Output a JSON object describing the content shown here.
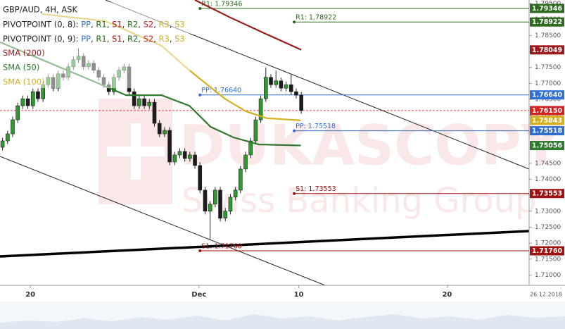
{
  "chart_data": {
    "type": "candlestick",
    "title": "GBP/AUD, 4H, ASK",
    "xlim": [
      -0.5,
      104
    ],
    "ylim": [
      1.7068,
      1.7961
    ],
    "xticks": [
      {
        "value": 5.5,
        "label": "20"
      },
      {
        "value": 38.8,
        "label": "Dec"
      },
      {
        "value": 58.5,
        "label": "10"
      },
      {
        "value": 87.8,
        "label": "20"
      }
    ],
    "end_date": "26.12.2018",
    "yticks": [
      {
        "value": 1.71,
        "label": "1.71000"
      },
      {
        "value": 1.715,
        "label": "1.71500"
      },
      {
        "value": 1.72,
        "label": "1.72000"
      },
      {
        "value": 1.725,
        "label": "1.72500"
      },
      {
        "value": 1.73,
        "label": "1.73000"
      },
      {
        "value": 1.735,
        "label": "1.73500"
      },
      {
        "value": 1.74,
        "label": "1.74000"
      },
      {
        "value": 1.745,
        "label": "1.74500"
      },
      {
        "value": 1.75,
        "label": "1.75000"
      },
      {
        "value": 1.755,
        "label": "1.75500"
      },
      {
        "value": 1.76,
        "label": "1.76000"
      },
      {
        "value": 1.765,
        "label": "1.76500"
      },
      {
        "value": 1.77,
        "label": "1.77000"
      },
      {
        "value": 1.775,
        "label": "1.77500"
      },
      {
        "value": 1.78,
        "label": "1.78000"
      },
      {
        "value": 1.785,
        "label": "1.78500"
      },
      {
        "value": 1.79,
        "label": "1.79000"
      },
      {
        "value": 1.795,
        "label": "1.79500"
      }
    ],
    "up_color": "#2e9a2e",
    "down_color": "#1c1c1c",
    "open": [
      1.75,
      1.752,
      1.7542,
      1.7586,
      1.763,
      1.7652,
      1.763,
      1.7674,
      1.7652,
      1.7696,
      1.7719,
      1.7685,
      1.773,
      1.7719,
      1.7752,
      1.7774,
      1.7785,
      1.7752,
      1.7763,
      1.7741,
      1.7719,
      1.7696,
      1.7674,
      1.7719,
      1.7741,
      1.7752,
      1.7674,
      1.763,
      1.7652,
      1.763,
      1.7641,
      1.7575,
      1.7542,
      1.7553,
      1.7454,
      1.7476,
      1.7487,
      1.7465,
      1.7476,
      1.7443,
      1.7366,
      1.73,
      1.7322,
      1.7366,
      1.7278,
      1.73,
      1.7344,
      1.7366,
      1.7432,
      1.7476,
      1.752,
      1.7586,
      1.7652,
      1.7719,
      1.7696,
      1.7708,
      1.7685,
      1.7696,
      1.7674,
      1.7663
    ],
    "high": [
      1.753,
      1.7552,
      1.7596,
      1.764,
      1.7662,
      1.7662,
      1.7684,
      1.7684,
      1.7706,
      1.7729,
      1.7729,
      1.774,
      1.774,
      1.7762,
      1.7784,
      1.781,
      1.7795,
      1.7773,
      1.7773,
      1.7751,
      1.7729,
      1.7706,
      1.7729,
      1.7751,
      1.7762,
      1.7762,
      1.7684,
      1.7662,
      1.7662,
      1.7651,
      1.7651,
      1.7585,
      1.7563,
      1.7563,
      1.7486,
      1.7497,
      1.7497,
      1.7486,
      1.7486,
      1.7453,
      1.7376,
      1.7332,
      1.7376,
      1.7376,
      1.731,
      1.7354,
      1.7376,
      1.7442,
      1.7486,
      1.753,
      1.7596,
      1.7662,
      1.775,
      1.7729,
      1.774,
      1.7718,
      1.7706,
      1.773,
      1.7684,
      1.7673
    ],
    "low": [
      1.749,
      1.751,
      1.7532,
      1.7576,
      1.762,
      1.762,
      1.762,
      1.7642,
      1.7642,
      1.7686,
      1.7675,
      1.7675,
      1.7709,
      1.7709,
      1.7742,
      1.7764,
      1.7742,
      1.7742,
      1.7731,
      1.7709,
      1.7686,
      1.7664,
      1.7664,
      1.7709,
      1.7731,
      1.7664,
      1.762,
      1.762,
      1.762,
      1.762,
      1.7565,
      1.7532,
      1.7532,
      1.7444,
      1.7444,
      1.7466,
      1.7455,
      1.7455,
      1.7433,
      1.7356,
      1.729,
      1.7211,
      1.7312,
      1.7268,
      1.7268,
      1.729,
      1.7334,
      1.7356,
      1.7422,
      1.7466,
      1.751,
      1.7576,
      1.7642,
      1.7686,
      1.7686,
      1.7675,
      1.7675,
      1.7664,
      1.7653,
      1.7605
    ],
    "close": [
      1.752,
      1.7542,
      1.7586,
      1.763,
      1.7652,
      1.763,
      1.7674,
      1.7652,
      1.7696,
      1.7719,
      1.7685,
      1.773,
      1.7719,
      1.7752,
      1.7774,
      1.7785,
      1.7752,
      1.7763,
      1.7741,
      1.7719,
      1.7696,
      1.7674,
      1.7719,
      1.7741,
      1.7752,
      1.7674,
      1.763,
      1.7652,
      1.763,
      1.7641,
      1.7575,
      1.7542,
      1.7553,
      1.7454,
      1.7476,
      1.7487,
      1.7465,
      1.7476,
      1.7443,
      1.7366,
      1.73,
      1.7322,
      1.7366,
      1.7278,
      1.73,
      1.7344,
      1.7366,
      1.7432,
      1.7476,
      1.752,
      1.7586,
      1.7652,
      1.7719,
      1.7696,
      1.7708,
      1.7685,
      1.7696,
      1.7674,
      1.7663,
      1.7615
    ],
    "series": [
      {
        "name": "SMA (200)",
        "color": "#9b1c1c",
        "x": [
          38,
          45,
          52,
          59
        ],
        "values": [
          1.7961,
          1.7906,
          1.7855,
          1.78049
        ]
      },
      {
        "name": "SMA (50)",
        "color": "#2f7a2f",
        "x": [
          -0.5,
          7.8,
          16.1,
          24.4,
          31.4,
          36.9,
          41.1,
          45.6,
          50.6,
          58.9
        ],
        "values": [
          1.7829,
          1.7774,
          1.7719,
          1.7663,
          1.7663,
          1.763,
          1.7564,
          1.7531,
          1.7509,
          1.75056
        ]
      },
      {
        "name": "SMA (100)",
        "color": "#d4b020",
        "x": [
          7.8,
          20.3,
          31.4,
          36.9,
          43.9,
          48,
          52.2,
          58.9
        ],
        "values": [
          1.7917,
          1.7895,
          1.7818,
          1.7741,
          1.7652,
          1.7613,
          1.7591,
          1.75843
        ]
      }
    ],
    "pivot_legend": [
      {
        "label": "PIVOTPOINT (0, 8):",
        "items": [
          {
            "text": "PP",
            "color": "#2f6fd0"
          },
          {
            "text": "R1",
            "color": "#2d6a1e"
          },
          {
            "text": "S1",
            "color": "#a01010"
          },
          {
            "text": "R2",
            "color": "#2d6a1e"
          },
          {
            "text": "S2",
            "color": "#d02020"
          },
          {
            "text": "R3",
            "color": "#d4b020"
          },
          {
            "text": "S3",
            "color": "#d4b020"
          }
        ]
      },
      {
        "label": "PIVOTPOINT (0, 9):",
        "items": [
          {
            "text": "PP",
            "color": "#2f6fd0"
          },
          {
            "text": "R1",
            "color": "#2d6a1e"
          },
          {
            "text": "S1",
            "color": "#a01010"
          },
          {
            "text": "R2",
            "color": "#2d6a1e"
          },
          {
            "text": "S2",
            "color": "#d02020"
          },
          {
            "text": "R3",
            "color": "#d4b020"
          },
          {
            "text": "S3",
            "color": "#d4b020"
          }
        ]
      }
    ],
    "separator": ", ",
    "levels": [
      {
        "label": "R1: 1.79346",
        "value": 1.79346,
        "x": 39,
        "color": "#2d6a1e"
      },
      {
        "label": "R1: 1.78922",
        "value": 1.78922,
        "x": 57.6,
        "color": "#2d6a1e"
      },
      {
        "label": "PP: 1.76640",
        "value": 1.7664,
        "x": 39,
        "color": "#2f6fd0"
      },
      {
        "label": "PP: 1.75518",
        "value": 1.75518,
        "x": 57.6,
        "color": "#2f6fd0"
      },
      {
        "label": "S1: 1.73553",
        "value": 1.73553,
        "x": 57.6,
        "color": "#a01010"
      },
      {
        "label": "S1: 1.71760",
        "value": 1.7176,
        "x": 39,
        "color": "#a01010"
      }
    ],
    "current_price": {
      "value": 1.7615,
      "color": "#d62020"
    },
    "price_tags": [
      {
        "value": 1.79346,
        "label": "1.79346",
        "color": "#2d6a1e"
      },
      {
        "value": 1.78922,
        "label": "1.78922",
        "color": "#2d6a1e"
      },
      {
        "value": 1.78049,
        "label": "1.78049",
        "color": "#9b1c1c"
      },
      {
        "value": 1.7664,
        "label": "1.76640",
        "color": "#2f6fd0"
      },
      {
        "value": 1.7615,
        "label": "1.76150",
        "color": "#d62020"
      },
      {
        "value": 1.75843,
        "label": "1.75843",
        "color": "#d4b020"
      },
      {
        "value": 1.75518,
        "label": "1.75518",
        "color": "#2f6fd0"
      },
      {
        "value": 1.75056,
        "label": "1.75056",
        "color": "#2f7a2f"
      },
      {
        "value": 1.73553,
        "label": "1.73553",
        "color": "#a01010"
      },
      {
        "value": 1.7176,
        "label": "1.71760",
        "color": "#a01010"
      }
    ],
    "watermark": [
      "DUKASCOPY",
      "Swiss Banking Group"
    ]
  }
}
